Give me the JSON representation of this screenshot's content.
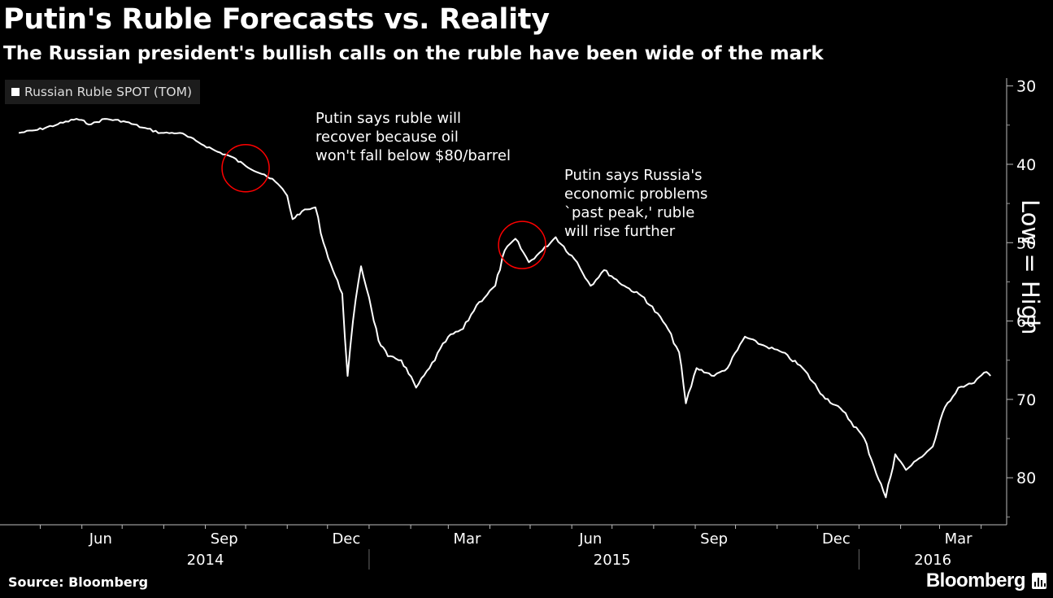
{
  "header": {
    "title": "Putin's Ruble Forecasts vs. Reality",
    "subtitle": "The Russian president's bullish calls on the ruble have been wide of the mark"
  },
  "footer": {
    "source": "Source: Bloomberg",
    "brand": "Bloomberg"
  },
  "chart_data": {
    "type": "line",
    "title": "Putin's Ruble Forecasts vs. Reality",
    "subtitle": "The Russian president's bullish calls on the ruble have been wide of the mark",
    "y_axis_side": "right",
    "y_inverted": true,
    "ylim": [
      86,
      29
    ],
    "y_ticks": [
      30,
      40,
      50,
      60,
      70,
      80
    ],
    "y_tick_labels": [
      "30",
      "40",
      "50",
      "60",
      "70",
      "80"
    ],
    "y_axis_note": "Low = High",
    "x_month_labels": [
      "Jun",
      "Sep",
      "Dec",
      "Mar",
      "Jun",
      "Sep",
      "Dec",
      "Mar"
    ],
    "x_year_labels": [
      "2014",
      "2015",
      "2016"
    ],
    "legend": {
      "position": "top-left",
      "entries": [
        "Russian Ruble SPOT (TOM)"
      ]
    },
    "grid": false,
    "series": [
      {
        "name": "Russian Ruble SPOT (TOM)",
        "color": "#ffffff",
        "x_start": "2014-04-15",
        "x_end": "2016-04-08",
        "points": [
          [
            "2014-04-15",
            36.0
          ],
          [
            "2014-04-29",
            35.6
          ],
          [
            "2014-05-14",
            34.9
          ],
          [
            "2014-05-28",
            34.2
          ],
          [
            "2014-06-08",
            34.9
          ],
          [
            "2014-06-18",
            34.2
          ],
          [
            "2014-07-02",
            34.5
          ],
          [
            "2014-07-16",
            35.3
          ],
          [
            "2014-07-30",
            36.0
          ],
          [
            "2014-08-13",
            36.0
          ],
          [
            "2014-08-27",
            37.2
          ],
          [
            "2014-09-10",
            38.4
          ],
          [
            "2014-09-20",
            39.0
          ],
          [
            "2014-10-01",
            40.2
          ],
          [
            "2014-10-15",
            41.3
          ],
          [
            "2014-10-25",
            42.5
          ],
          [
            "2014-11-01",
            44.0
          ],
          [
            "2014-11-05",
            47.0
          ],
          [
            "2014-11-12",
            46.0
          ],
          [
            "2014-11-22",
            45.5
          ],
          [
            "2014-11-28",
            50.0
          ],
          [
            "2014-12-05",
            53.5
          ],
          [
            "2014-12-12",
            56.5
          ],
          [
            "2014-12-16",
            67.0
          ],
          [
            "2014-12-20",
            60.0
          ],
          [
            "2014-12-26",
            53.0
          ],
          [
            "2015-01-01",
            57.0
          ],
          [
            "2015-01-08",
            62.5
          ],
          [
            "2015-01-15",
            64.5
          ],
          [
            "2015-01-25",
            65.0
          ],
          [
            "2015-02-05",
            68.5
          ],
          [
            "2015-02-15",
            66.0
          ],
          [
            "2015-03-01",
            62.0
          ],
          [
            "2015-03-12",
            61.0
          ],
          [
            "2015-03-22",
            58.0
          ],
          [
            "2015-04-05",
            55.5
          ],
          [
            "2015-04-12",
            51.0
          ],
          [
            "2015-04-20",
            49.5
          ],
          [
            "2015-04-30",
            52.5
          ],
          [
            "2015-05-10",
            51.0
          ],
          [
            "2015-05-20",
            49.3
          ],
          [
            "2015-06-05",
            52.5
          ],
          [
            "2015-06-15",
            55.5
          ],
          [
            "2015-06-25",
            53.5
          ],
          [
            "2015-07-10",
            55.5
          ],
          [
            "2015-07-25",
            57.0
          ],
          [
            "2015-08-10",
            60.5
          ],
          [
            "2015-08-20",
            64.0
          ],
          [
            "2015-08-25",
            70.5
          ],
          [
            "2015-09-02",
            66.0
          ],
          [
            "2015-09-15",
            67.0
          ],
          [
            "2015-09-25",
            66.0
          ],
          [
            "2015-10-08",
            62.0
          ],
          [
            "2015-10-20",
            63.0
          ],
          [
            "2015-11-05",
            64.0
          ],
          [
            "2015-11-20",
            66.0
          ],
          [
            "2015-12-05",
            69.5
          ],
          [
            "2015-12-20",
            71.5
          ],
          [
            "2016-01-05",
            75.0
          ],
          [
            "2016-01-12",
            78.5
          ],
          [
            "2016-01-21",
            82.5
          ],
          [
            "2016-01-28",
            77.0
          ],
          [
            "2016-02-05",
            79.0
          ],
          [
            "2016-02-15",
            77.5
          ],
          [
            "2016-02-25",
            76.0
          ],
          [
            "2016-03-05",
            71.0
          ],
          [
            "2016-03-15",
            68.5
          ],
          [
            "2016-03-25",
            68.0
          ],
          [
            "2016-04-05",
            66.5
          ],
          [
            "2016-04-08",
            67.0
          ]
        ]
      }
    ],
    "annotations": [
      {
        "text": "Putin says ruble will\nrecover because oil\nwon't fall below $80/barrel",
        "x": "2014-10-01",
        "y": 40.5,
        "marker": "circle",
        "marker_color": "#ff0000"
      },
      {
        "text": "Putin says Russia's\neconomic problems\n`past peak,' ruble\nwill rise further",
        "x": "2015-04-25",
        "y": 50.3,
        "marker": "circle",
        "marker_color": "#ff0000"
      }
    ],
    "colors": {
      "line": "#ffffff",
      "annotation_circle": "#ff0000",
      "background": "#000000"
    }
  }
}
